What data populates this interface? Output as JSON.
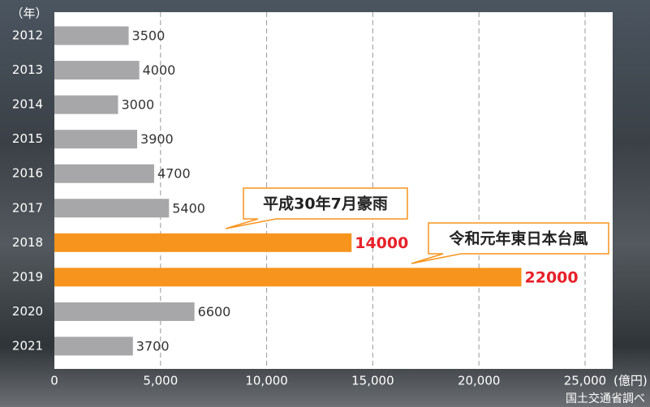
{
  "chart_data": {
    "type": "bar",
    "orientation": "horizontal",
    "y_unit": "（年）",
    "x_unit": "(億円)",
    "source": "国土交通省調べ",
    "categories": [
      "2012",
      "2013",
      "2014",
      "2015",
      "2016",
      "2017",
      "2018",
      "2019",
      "2020",
      "2021"
    ],
    "values": [
      3500,
      4000,
      3000,
      3900,
      4700,
      5400,
      14000,
      22000,
      6600,
      3700
    ],
    "colors": [
      "#a7a7a9",
      "#a7a7a9",
      "#a7a7a9",
      "#a7a7a9",
      "#a7a7a9",
      "#a7a7a9",
      "#f7941d",
      "#f7941d",
      "#a7a7a9",
      "#a7a7a9"
    ],
    "value_label_colors": [
      "#333333",
      "#333333",
      "#333333",
      "#333333",
      "#333333",
      "#333333",
      "#e8202a",
      "#e8202a",
      "#333333",
      "#333333"
    ],
    "annotations": [
      "平成30年7月豪雨",
      "令和元年東日本台風"
    ],
    "xlim": [
      0,
      26300
    ],
    "xticks": [
      0,
      {
        "value": 5000,
        "label": "5,000"
      },
      {
        "value": 10000,
        "label": "10,000"
      },
      {
        "value": 15000,
        "label": "15,000"
      },
      {
        "value": 20000,
        "label": "20,000"
      },
      {
        "value": 25000,
        "label": "25,000"
      }
    ],
    "grid": true
  }
}
